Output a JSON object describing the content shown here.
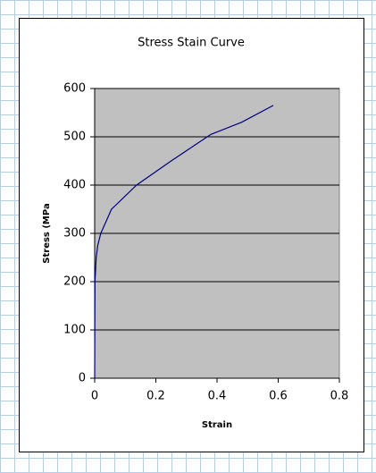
{
  "chart_data": {
    "type": "line",
    "title": "Stress Stain Curve",
    "x_label": "Strain",
    "y_label": "Stress (MPa",
    "x": [
      0,
      0.001,
      0.005,
      0.01,
      0.02,
      0.055,
      0.137,
      0.25,
      0.38,
      0.48,
      0.584
    ],
    "series": [
      {
        "name": "Stress",
        "color": "#000080",
        "values": [
          0,
          200,
          250,
          275,
          300,
          350,
          400,
          450,
          505,
          530,
          565
        ]
      }
    ],
    "xlim": [
      0,
      0.8
    ],
    "xticks": [
      0,
      0.2,
      0.4,
      0.6,
      0.8
    ],
    "ylim": [
      0,
      600
    ],
    "yticks": [
      0,
      100,
      200,
      300,
      400,
      500,
      600
    ],
    "grid": true
  }
}
